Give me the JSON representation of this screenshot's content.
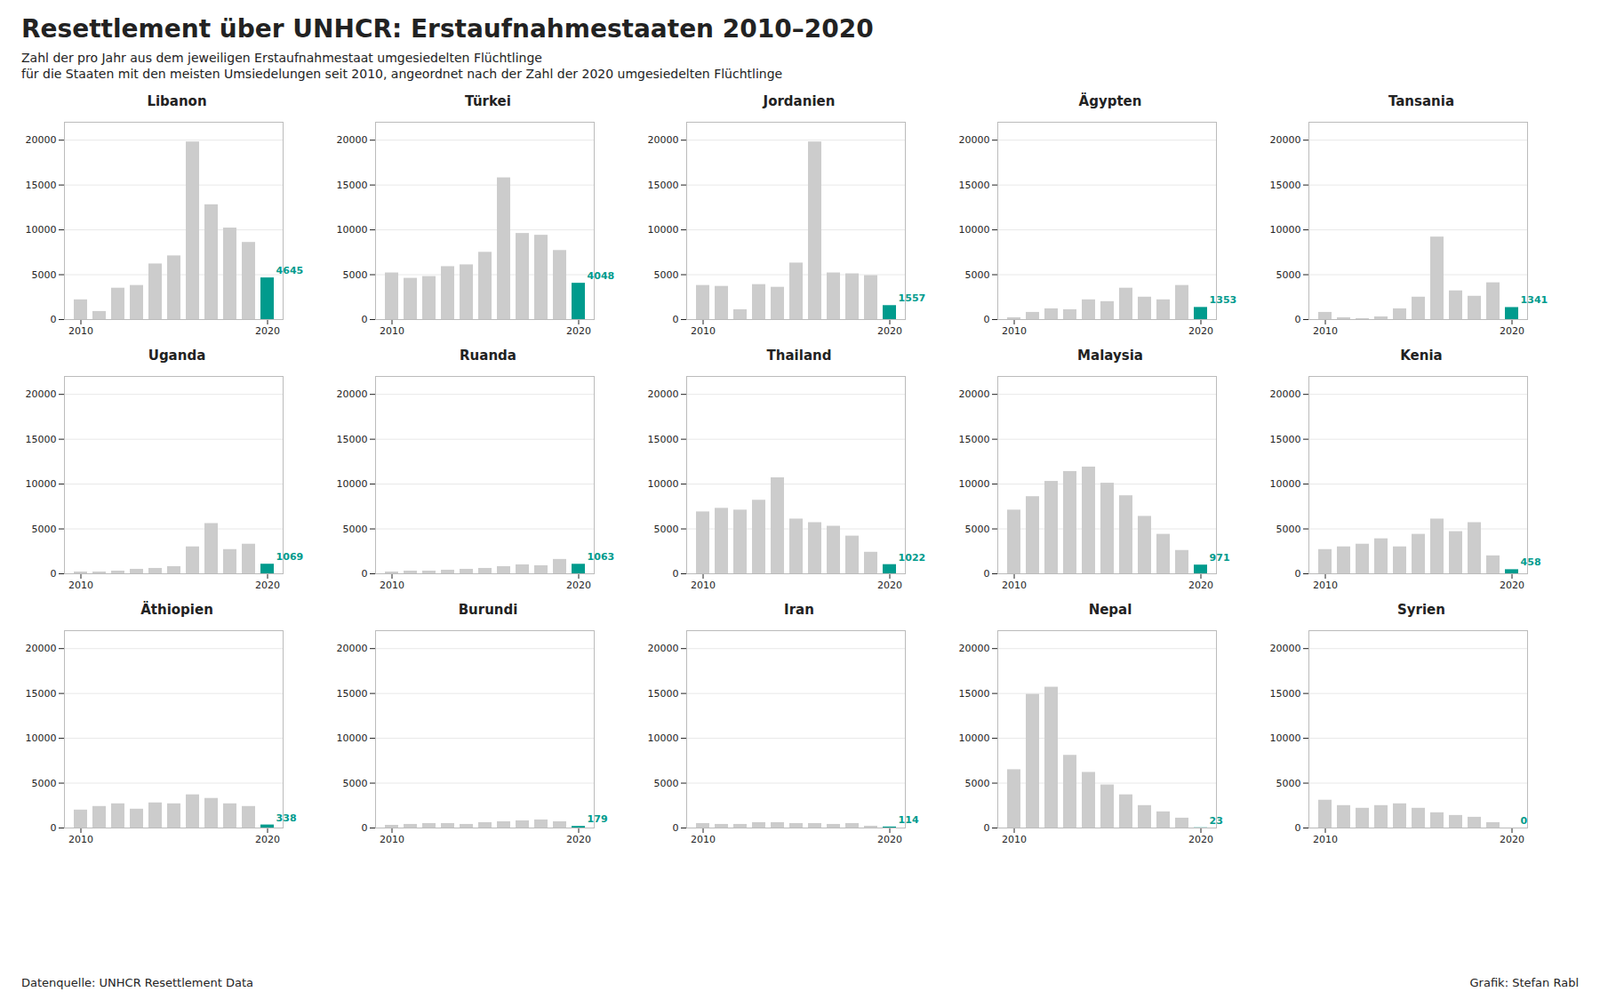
{
  "title": "Resettlement über UNHCR: Erstaufnahmestaaten 2010–2020",
  "subtitle": [
    "Zahl der pro Jahr aus dem jeweiligen Erstaufnahmestaat umgesiedelten Flüchtlinge",
    "für die Staaten mit den meisten Umsiedelungen seit 2010, angeordnet nach der Zahl der 2020 umgesiedelten Flüchtlinge"
  ],
  "annotations": [
    "Datenquelle: UNHCR Resettlement Data",
    "Grafik: Stefan Rabl"
  ],
  "chart_data": [
    {
      "type": "bar",
      "title": "Libanon",
      "categories": [
        "2010",
        null,
        null,
        null,
        null,
        null,
        null,
        null,
        null,
        null,
        "2020"
      ],
      "values": [
        2200,
        900,
        3500,
        3800,
        6200,
        7100,
        19800,
        12800,
        10200,
        8600,
        4645
      ],
      "colors": [
        "#CCCCCC",
        "#CCCCCC",
        "#CCCCCC",
        "#CCCCCC",
        "#CCCCCC",
        "#CCCCCC",
        "#CCCCCC",
        "#CCCCCC",
        "#CCCCCC",
        "#CCCCCC",
        "#009B8D"
      ],
      "data_labels": true,
      "value_labels": [
        null,
        null,
        null,
        null,
        null,
        null,
        null,
        null,
        null,
        null,
        "4645"
      ],
      "ylim": [
        0,
        22000
      ],
      "yticks": [
        0,
        5000,
        10000,
        15000,
        20000
      ],
      "grid": true
    },
    {
      "type": "bar",
      "title": "Türkei",
      "categories": [
        "2010",
        null,
        null,
        null,
        null,
        null,
        null,
        null,
        null,
        null,
        "2020"
      ],
      "values": [
        5200,
        4600,
        4800,
        5900,
        6100,
        7500,
        15800,
        9600,
        9400,
        7700,
        4048
      ],
      "colors": [
        "#CCCCCC",
        "#CCCCCC",
        "#CCCCCC",
        "#CCCCCC",
        "#CCCCCC",
        "#CCCCCC",
        "#CCCCCC",
        "#CCCCCC",
        "#CCCCCC",
        "#CCCCCC",
        "#009B8D"
      ],
      "data_labels": true,
      "value_labels": [
        null,
        null,
        null,
        null,
        null,
        null,
        null,
        null,
        null,
        null,
        "4048"
      ],
      "ylim": [
        0,
        22000
      ],
      "yticks": [
        0,
        5000,
        10000,
        15000,
        20000
      ],
      "grid": true
    },
    {
      "type": "bar",
      "title": "Jordanien",
      "categories": [
        "2010",
        null,
        null,
        null,
        null,
        null,
        null,
        null,
        null,
        null,
        "2020"
      ],
      "values": [
        3800,
        3700,
        1100,
        3900,
        3600,
        6300,
        19800,
        5200,
        5100,
        4900,
        1557
      ],
      "colors": [
        "#CCCCCC",
        "#CCCCCC",
        "#CCCCCC",
        "#CCCCCC",
        "#CCCCCC",
        "#CCCCCC",
        "#CCCCCC",
        "#CCCCCC",
        "#CCCCCC",
        "#CCCCCC",
        "#009B8D"
      ],
      "data_labels": true,
      "value_labels": [
        null,
        null,
        null,
        null,
        null,
        null,
        null,
        null,
        null,
        null,
        "1557"
      ],
      "ylim": [
        0,
        22000
      ],
      "yticks": [
        0,
        5000,
        10000,
        15000,
        20000
      ],
      "grid": true
    },
    {
      "type": "bar",
      "title": "Ägypten",
      "categories": [
        "2010",
        null,
        null,
        null,
        null,
        null,
        null,
        null,
        null,
        null,
        "2020"
      ],
      "values": [
        200,
        800,
        1200,
        1100,
        2200,
        2000,
        3500,
        2500,
        2200,
        3800,
        1353
      ],
      "colors": [
        "#CCCCCC",
        "#CCCCCC",
        "#CCCCCC",
        "#CCCCCC",
        "#CCCCCC",
        "#CCCCCC",
        "#CCCCCC",
        "#CCCCCC",
        "#CCCCCC",
        "#CCCCCC",
        "#009B8D"
      ],
      "data_labels": true,
      "value_labels": [
        null,
        null,
        null,
        null,
        null,
        null,
        null,
        null,
        null,
        null,
        "1353"
      ],
      "ylim": [
        0,
        22000
      ],
      "yticks": [
        0,
        5000,
        10000,
        15000,
        20000
      ],
      "grid": true
    },
    {
      "type": "bar",
      "title": "Tansania",
      "categories": [
        "2010",
        null,
        null,
        null,
        null,
        null,
        null,
        null,
        null,
        null,
        "2020"
      ],
      "values": [
        800,
        200,
        100,
        300,
        1200,
        2500,
        9200,
        3200,
        2600,
        4100,
        1341
      ],
      "colors": [
        "#CCCCCC",
        "#CCCCCC",
        "#CCCCCC",
        "#CCCCCC",
        "#CCCCCC",
        "#CCCCCC",
        "#CCCCCC",
        "#CCCCCC",
        "#CCCCCC",
        "#CCCCCC",
        "#009B8D"
      ],
      "data_labels": true,
      "value_labels": [
        null,
        null,
        null,
        null,
        null,
        null,
        null,
        null,
        null,
        null,
        "1341"
      ],
      "ylim": [
        0,
        22000
      ],
      "yticks": [
        0,
        5000,
        10000,
        15000,
        20000
      ],
      "grid": true
    },
    {
      "type": "bar",
      "title": "Uganda",
      "categories": [
        "2010",
        null,
        null,
        null,
        null,
        null,
        null,
        null,
        null,
        null,
        "2020"
      ],
      "values": [
        200,
        200,
        300,
        500,
        600,
        800,
        3000,
        5600,
        2700,
        3300,
        1069
      ],
      "colors": [
        "#CCCCCC",
        "#CCCCCC",
        "#CCCCCC",
        "#CCCCCC",
        "#CCCCCC",
        "#CCCCCC",
        "#CCCCCC",
        "#CCCCCC",
        "#CCCCCC",
        "#CCCCCC",
        "#009B8D"
      ],
      "data_labels": true,
      "value_labels": [
        null,
        null,
        null,
        null,
        null,
        null,
        null,
        null,
        null,
        null,
        "1069"
      ],
      "ylim": [
        0,
        22000
      ],
      "yticks": [
        0,
        5000,
        10000,
        15000,
        20000
      ],
      "grid": true
    },
    {
      "type": "bar",
      "title": "Ruanda",
      "categories": [
        "2010",
        null,
        null,
        null,
        null,
        null,
        null,
        null,
        null,
        null,
        "2020"
      ],
      "values": [
        200,
        300,
        300,
        400,
        500,
        600,
        800,
        1000,
        900,
        1600,
        1063
      ],
      "colors": [
        "#CCCCCC",
        "#CCCCCC",
        "#CCCCCC",
        "#CCCCCC",
        "#CCCCCC",
        "#CCCCCC",
        "#CCCCCC",
        "#CCCCCC",
        "#CCCCCC",
        "#CCCCCC",
        "#009B8D"
      ],
      "data_labels": true,
      "value_labels": [
        null,
        null,
        null,
        null,
        null,
        null,
        null,
        null,
        null,
        null,
        "1063"
      ],
      "ylim": [
        0,
        22000
      ],
      "yticks": [
        0,
        5000,
        10000,
        15000,
        20000
      ],
      "grid": true
    },
    {
      "type": "bar",
      "title": "Thailand",
      "categories": [
        "2010",
        null,
        null,
        null,
        null,
        null,
        null,
        null,
        null,
        null,
        "2020"
      ],
      "values": [
        6900,
        7300,
        7100,
        8200,
        10700,
        6100,
        5700,
        5300,
        4200,
        2400,
        1022
      ],
      "colors": [
        "#CCCCCC",
        "#CCCCCC",
        "#CCCCCC",
        "#CCCCCC",
        "#CCCCCC",
        "#CCCCCC",
        "#CCCCCC",
        "#CCCCCC",
        "#CCCCCC",
        "#CCCCCC",
        "#009B8D"
      ],
      "data_labels": true,
      "value_labels": [
        null,
        null,
        null,
        null,
        null,
        null,
        null,
        null,
        null,
        null,
        "1022"
      ],
      "ylim": [
        0,
        22000
      ],
      "yticks": [
        0,
        5000,
        10000,
        15000,
        20000
      ],
      "grid": true
    },
    {
      "type": "bar",
      "title": "Malaysia",
      "categories": [
        "2010",
        null,
        null,
        null,
        null,
        null,
        null,
        null,
        null,
        null,
        "2020"
      ],
      "values": [
        7100,
        8600,
        10300,
        11400,
        11900,
        10100,
        8700,
        6400,
        4400,
        2600,
        971
      ],
      "colors": [
        "#CCCCCC",
        "#CCCCCC",
        "#CCCCCC",
        "#CCCCCC",
        "#CCCCCC",
        "#CCCCCC",
        "#CCCCCC",
        "#CCCCCC",
        "#CCCCCC",
        "#CCCCCC",
        "#009B8D"
      ],
      "data_labels": true,
      "value_labels": [
        null,
        null,
        null,
        null,
        null,
        null,
        null,
        null,
        null,
        null,
        "971"
      ],
      "ylim": [
        0,
        22000
      ],
      "yticks": [
        0,
        5000,
        10000,
        15000,
        20000
      ],
      "grid": true
    },
    {
      "type": "bar",
      "title": "Kenia",
      "categories": [
        "2010",
        null,
        null,
        null,
        null,
        null,
        null,
        null,
        null,
        null,
        "2020"
      ],
      "values": [
        2700,
        3000,
        3300,
        3900,
        3000,
        4400,
        6100,
        4700,
        5700,
        2000,
        458
      ],
      "colors": [
        "#CCCCCC",
        "#CCCCCC",
        "#CCCCCC",
        "#CCCCCC",
        "#CCCCCC",
        "#CCCCCC",
        "#CCCCCC",
        "#CCCCCC",
        "#CCCCCC",
        "#CCCCCC",
        "#009B8D"
      ],
      "data_labels": true,
      "value_labels": [
        null,
        null,
        null,
        null,
        null,
        null,
        null,
        null,
        null,
        null,
        "458"
      ],
      "ylim": [
        0,
        22000
      ],
      "yticks": [
        0,
        5000,
        10000,
        15000,
        20000
      ],
      "grid": true
    },
    {
      "type": "bar",
      "title": "Äthiopien",
      "categories": [
        "2010",
        null,
        null,
        null,
        null,
        null,
        null,
        null,
        null,
        null,
        "2020"
      ],
      "values": [
        2000,
        2400,
        2700,
        2100,
        2800,
        2700,
        3700,
        3300,
        2700,
        2400,
        338
      ],
      "colors": [
        "#CCCCCC",
        "#CCCCCC",
        "#CCCCCC",
        "#CCCCCC",
        "#CCCCCC",
        "#CCCCCC",
        "#CCCCCC",
        "#CCCCCC",
        "#CCCCCC",
        "#CCCCCC",
        "#009B8D"
      ],
      "data_labels": true,
      "value_labels": [
        null,
        null,
        null,
        null,
        null,
        null,
        null,
        null,
        null,
        null,
        "338"
      ],
      "ylim": [
        0,
        22000
      ],
      "yticks": [
        0,
        5000,
        10000,
        15000,
        20000
      ],
      "grid": true
    },
    {
      "type": "bar",
      "title": "Burundi",
      "categories": [
        "2010",
        null,
        null,
        null,
        null,
        null,
        null,
        null,
        null,
        null,
        "2020"
      ],
      "values": [
        300,
        400,
        500,
        500,
        400,
        600,
        700,
        800,
        900,
        700,
        179
      ],
      "colors": [
        "#CCCCCC",
        "#CCCCCC",
        "#CCCCCC",
        "#CCCCCC",
        "#CCCCCC",
        "#CCCCCC",
        "#CCCCCC",
        "#CCCCCC",
        "#CCCCCC",
        "#CCCCCC",
        "#009B8D"
      ],
      "data_labels": true,
      "value_labels": [
        null,
        null,
        null,
        null,
        null,
        null,
        null,
        null,
        null,
        null,
        "179"
      ],
      "ylim": [
        0,
        22000
      ],
      "yticks": [
        0,
        5000,
        10000,
        15000,
        20000
      ],
      "grid": true
    },
    {
      "type": "bar",
      "title": "Iran",
      "categories": [
        "2010",
        null,
        null,
        null,
        null,
        null,
        null,
        null,
        null,
        null,
        "2020"
      ],
      "values": [
        500,
        400,
        400,
        600,
        600,
        500,
        500,
        400,
        500,
        200,
        114
      ],
      "colors": [
        "#CCCCCC",
        "#CCCCCC",
        "#CCCCCC",
        "#CCCCCC",
        "#CCCCCC",
        "#CCCCCC",
        "#CCCCCC",
        "#CCCCCC",
        "#CCCCCC",
        "#CCCCCC",
        "#009B8D"
      ],
      "data_labels": true,
      "value_labels": [
        null,
        null,
        null,
        null,
        null,
        null,
        null,
        null,
        null,
        null,
        "114"
      ],
      "ylim": [
        0,
        22000
      ],
      "yticks": [
        0,
        5000,
        10000,
        15000,
        20000
      ],
      "grid": true
    },
    {
      "type": "bar",
      "title": "Nepal",
      "categories": [
        "2010",
        null,
        null,
        null,
        null,
        null,
        null,
        null,
        null,
        null,
        "2020"
      ],
      "values": [
        6500,
        14900,
        15700,
        8100,
        6200,
        4800,
        3700,
        2500,
        1800,
        1100,
        23
      ],
      "colors": [
        "#CCCCCC",
        "#CCCCCC",
        "#CCCCCC",
        "#CCCCCC",
        "#CCCCCC",
        "#CCCCCC",
        "#CCCCCC",
        "#CCCCCC",
        "#CCCCCC",
        "#CCCCCC",
        "#009B8D"
      ],
      "data_labels": true,
      "value_labels": [
        null,
        null,
        null,
        null,
        null,
        null,
        null,
        null,
        null,
        null,
        "23"
      ],
      "ylim": [
        0,
        22000
      ],
      "yticks": [
        0,
        5000,
        10000,
        15000,
        20000
      ],
      "grid": true
    },
    {
      "type": "bar",
      "title": "Syrien",
      "categories": [
        "2010",
        null,
        null,
        null,
        null,
        null,
        null,
        null,
        null,
        null,
        "2020"
      ],
      "values": [
        3100,
        2500,
        2200,
        2500,
        2700,
        2200,
        1700,
        1400,
        1200,
        600,
        0
      ],
      "colors": [
        "#CCCCCC",
        "#CCCCCC",
        "#CCCCCC",
        "#CCCCCC",
        "#CCCCCC",
        "#CCCCCC",
        "#CCCCCC",
        "#CCCCCC",
        "#CCCCCC",
        "#CCCCCC",
        "#009B8D"
      ],
      "data_labels": true,
      "value_labels": [
        null,
        null,
        null,
        null,
        null,
        null,
        null,
        null,
        null,
        null,
        "0"
      ],
      "ylim": [
        0,
        22000
      ],
      "yticks": [
        0,
        5000,
        10000,
        15000,
        20000
      ],
      "grid": true
    }
  ]
}
